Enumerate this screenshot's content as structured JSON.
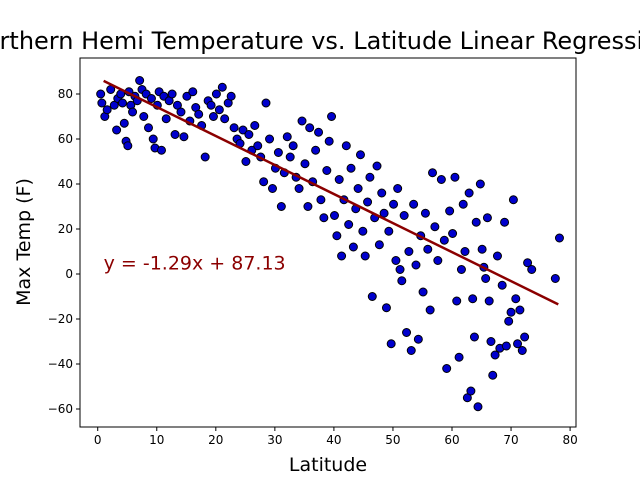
{
  "chart_data": {
    "type": "scatter",
    "title": "Northern Hemi Temperature vs. Latitude Linear Regression",
    "xlabel": "Latitude",
    "ylabel": "Max Temp (F)",
    "xlim": [
      -3,
      81
    ],
    "ylim": [
      -68,
      96
    ],
    "xticks": [
      0,
      10,
      20,
      30,
      40,
      50,
      60,
      70,
      80
    ],
    "yticks": [
      -60,
      -40,
      -20,
      0,
      20,
      40,
      60,
      80
    ],
    "grid": false,
    "marker_color": "#0000cd",
    "marker_edge": "#000000",
    "regression": {
      "slope": -1.29,
      "intercept": 87.13,
      "x_range": [
        1,
        78
      ],
      "color": "#8b0000",
      "equation_label": "y = -1.29x + 87.13",
      "label_at": [
        1,
        2
      ]
    },
    "points": [
      [
        0.5,
        80
      ],
      [
        0.7,
        76
      ],
      [
        1.2,
        70
      ],
      [
        1.6,
        73
      ],
      [
        2.2,
        82
      ],
      [
        2.8,
        75
      ],
      [
        3.2,
        64
      ],
      [
        3.4,
        78
      ],
      [
        3.9,
        80
      ],
      [
        4.2,
        76
      ],
      [
        4.5,
        67
      ],
      [
        4.8,
        59
      ],
      [
        5.1,
        57
      ],
      [
        5.3,
        81
      ],
      [
        5.6,
        75
      ],
      [
        5.9,
        72
      ],
      [
        6.3,
        79
      ],
      [
        6.7,
        77
      ],
      [
        7.1,
        86
      ],
      [
        7.5,
        82
      ],
      [
        7.8,
        70
      ],
      [
        8.2,
        80
      ],
      [
        8.6,
        65
      ],
      [
        9.1,
        78
      ],
      [
        9.4,
        60
      ],
      [
        9.7,
        56
      ],
      [
        10.1,
        75
      ],
      [
        10.4,
        81
      ],
      [
        10.8,
        55
      ],
      [
        11.2,
        79
      ],
      [
        11.6,
        69
      ],
      [
        12.1,
        77
      ],
      [
        12.6,
        80
      ],
      [
        13.1,
        62
      ],
      [
        13.5,
        75
      ],
      [
        14.1,
        72
      ],
      [
        14.6,
        61
      ],
      [
        15.1,
        79
      ],
      [
        15.6,
        68
      ],
      [
        16.1,
        81
      ],
      [
        16.6,
        74
      ],
      [
        17.1,
        71
      ],
      [
        17.6,
        66
      ],
      [
        18.2,
        52
      ],
      [
        18.7,
        77
      ],
      [
        19.2,
        75
      ],
      [
        19.6,
        70
      ],
      [
        20.1,
        80
      ],
      [
        20.6,
        73
      ],
      [
        21.1,
        83
      ],
      [
        21.5,
        69
      ],
      [
        22.1,
        76
      ],
      [
        22.6,
        79
      ],
      [
        23.1,
        65
      ],
      [
        23.6,
        60
      ],
      [
        24.1,
        58
      ],
      [
        24.6,
        64
      ],
      [
        25.1,
        50
      ],
      [
        25.6,
        62
      ],
      [
        26.1,
        55
      ],
      [
        26.6,
        66
      ],
      [
        27.1,
        57
      ],
      [
        27.6,
        52
      ],
      [
        28.1,
        41
      ],
      [
        28.5,
        76
      ],
      [
        29.1,
        60
      ],
      [
        29.6,
        38
      ],
      [
        30.1,
        47
      ],
      [
        30.6,
        54
      ],
      [
        31.1,
        30
      ],
      [
        31.6,
        45
      ],
      [
        32.1,
        61
      ],
      [
        32.6,
        52
      ],
      [
        33.1,
        57
      ],
      [
        33.6,
        43
      ],
      [
        34.1,
        38
      ],
      [
        34.6,
        68
      ],
      [
        35.1,
        49
      ],
      [
        35.6,
        30
      ],
      [
        35.9,
        65
      ],
      [
        36.4,
        41
      ],
      [
        36.9,
        55
      ],
      [
        37.4,
        63
      ],
      [
        37.8,
        33
      ],
      [
        38.3,
        25
      ],
      [
        38.8,
        46
      ],
      [
        39.2,
        59
      ],
      [
        39.6,
        70
      ],
      [
        40.1,
        26
      ],
      [
        40.5,
        17
      ],
      [
        40.9,
        42
      ],
      [
        41.3,
        8
      ],
      [
        41.7,
        33
      ],
      [
        42.1,
        57
      ],
      [
        42.5,
        22
      ],
      [
        42.9,
        47
      ],
      [
        43.3,
        12
      ],
      [
        43.7,
        29
      ],
      [
        44.1,
        38
      ],
      [
        44.5,
        53
      ],
      [
        44.9,
        19
      ],
      [
        45.3,
        8
      ],
      [
        45.7,
        32
      ],
      [
        46.1,
        43
      ],
      [
        46.5,
        -10
      ],
      [
        46.9,
        25
      ],
      [
        47.3,
        48
      ],
      [
        47.7,
        13
      ],
      [
        48.1,
        36
      ],
      [
        48.5,
        27
      ],
      [
        48.9,
        -15
      ],
      [
        49.3,
        19
      ],
      [
        49.7,
        -31
      ],
      [
        50.1,
        31
      ],
      [
        50.5,
        6
      ],
      [
        50.8,
        38
      ],
      [
        51.2,
        2
      ],
      [
        51.5,
        -3
      ],
      [
        51.9,
        26
      ],
      [
        52.3,
        -26
      ],
      [
        52.7,
        10
      ],
      [
        53.1,
        -34
      ],
      [
        53.5,
        31
      ],
      [
        53.9,
        4
      ],
      [
        54.3,
        -29
      ],
      [
        54.7,
        17
      ],
      [
        55.1,
        -8
      ],
      [
        55.5,
        27
      ],
      [
        55.9,
        11
      ],
      [
        56.3,
        -16
      ],
      [
        56.7,
        45
      ],
      [
        57.1,
        21
      ],
      [
        57.6,
        6
      ],
      [
        58.2,
        42
      ],
      [
        58.7,
        15
      ],
      [
        59.1,
        -42
      ],
      [
        59.6,
        28
      ],
      [
        60.1,
        18
      ],
      [
        60.5,
        43
      ],
      [
        60.8,
        -12
      ],
      [
        61.2,
        -37
      ],
      [
        61.6,
        2
      ],
      [
        61.9,
        31
      ],
      [
        62.2,
        10
      ],
      [
        62.6,
        -55
      ],
      [
        62.9,
        36
      ],
      [
        63.2,
        -52
      ],
      [
        63.5,
        -11
      ],
      [
        63.8,
        -28
      ],
      [
        64.1,
        23
      ],
      [
        64.4,
        -59
      ],
      [
        64.8,
        40
      ],
      [
        65.1,
        11
      ],
      [
        65.4,
        3
      ],
      [
        65.7,
        -2
      ],
      [
        66.0,
        25
      ],
      [
        66.3,
        -12
      ],
      [
        66.6,
        -30
      ],
      [
        66.9,
        -45
      ],
      [
        67.3,
        -36
      ],
      [
        67.7,
        8
      ],
      [
        68.1,
        -33
      ],
      [
        68.5,
        -5
      ],
      [
        68.9,
        23
      ],
      [
        69.2,
        -32
      ],
      [
        69.6,
        -21
      ],
      [
        70.0,
        -17
      ],
      [
        70.4,
        33
      ],
      [
        70.8,
        -11
      ],
      [
        71.1,
        -31
      ],
      [
        71.5,
        -16
      ],
      [
        71.9,
        -34
      ],
      [
        72.3,
        -28
      ],
      [
        72.8,
        5
      ],
      [
        73.5,
        2
      ],
      [
        77.5,
        -2
      ],
      [
        78.2,
        16
      ]
    ]
  }
}
